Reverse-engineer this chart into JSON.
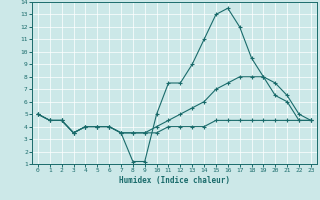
{
  "xlabel": "Humidex (Indice chaleur)",
  "xlim": [
    -0.5,
    23.5
  ],
  "ylim": [
    1,
    14
  ],
  "xticks": [
    0,
    1,
    2,
    3,
    4,
    5,
    6,
    7,
    8,
    9,
    10,
    11,
    12,
    13,
    14,
    15,
    16,
    17,
    18,
    19,
    20,
    21,
    22,
    23
  ],
  "yticks": [
    1,
    2,
    3,
    4,
    5,
    6,
    7,
    8,
    9,
    10,
    11,
    12,
    13,
    14
  ],
  "bg_color": "#cce8e8",
  "line_color": "#1a6b6b",
  "line1_x": [
    0,
    1,
    2,
    3,
    4,
    5,
    6,
    7,
    8,
    9,
    10,
    11,
    12,
    13,
    14,
    15,
    16,
    17,
    18,
    19,
    20,
    21,
    22,
    23
  ],
  "line1_y": [
    5,
    4.5,
    4.5,
    3.5,
    4,
    4,
    4,
    3.5,
    1.2,
    1.2,
    5,
    7.5,
    7.5,
    9,
    11,
    13,
    13.5,
    12,
    9.5,
    8,
    6.5,
    6,
    4.5,
    4.5
  ],
  "line2_x": [
    0,
    1,
    2,
    3,
    4,
    5,
    6,
    7,
    8,
    9,
    10,
    11,
    12,
    13,
    14,
    15,
    16,
    17,
    18,
    19,
    20,
    21,
    22,
    23
  ],
  "line2_y": [
    5,
    4.5,
    4.5,
    3.5,
    4,
    4,
    4,
    3.5,
    3.5,
    3.5,
    4,
    4.5,
    5,
    5.5,
    6,
    7,
    7.5,
    8,
    8,
    8,
    7.5,
    6.5,
    5,
    4.5
  ],
  "line3_x": [
    0,
    1,
    2,
    3,
    4,
    5,
    6,
    7,
    8,
    9,
    10,
    11,
    12,
    13,
    14,
    15,
    16,
    17,
    18,
    19,
    20,
    21,
    22,
    23
  ],
  "line3_y": [
    5,
    4.5,
    4.5,
    3.5,
    4,
    4,
    4,
    3.5,
    3.5,
    3.5,
    3.5,
    4,
    4,
    4,
    4,
    4.5,
    4.5,
    4.5,
    4.5,
    4.5,
    4.5,
    4.5,
    4.5,
    4.5
  ]
}
